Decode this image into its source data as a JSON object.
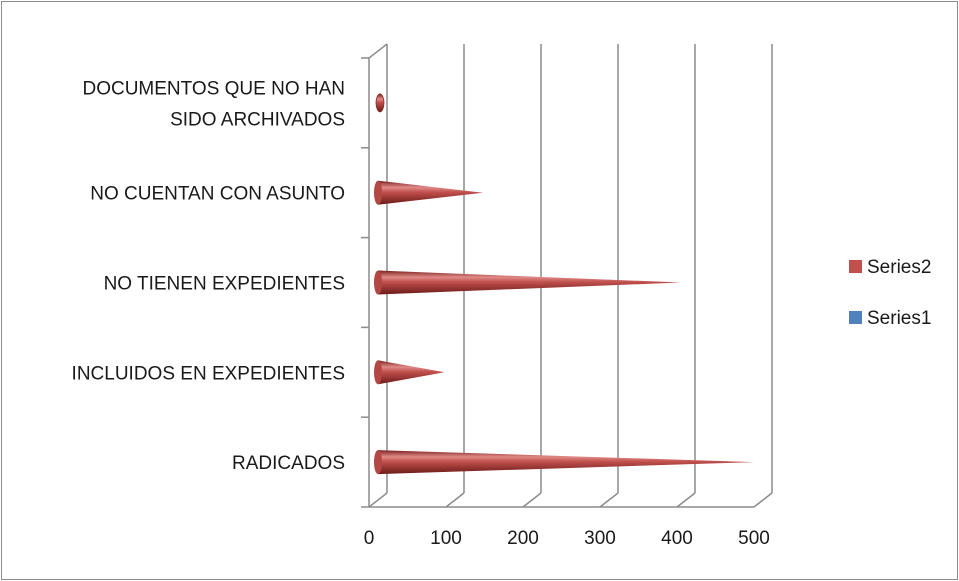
{
  "chart_data": {
    "type": "bar",
    "style": "3d-cone-horizontal",
    "categories": [
      "RADICADOS",
      "INCLUIDOS EN EXPEDIENTES",
      "NO TIENEN EXPEDIENTES",
      "NO CUENTAN CON ASUNTO",
      "DOCUMENTOS QUE NO HAN SIDO ARCHIVADOS"
    ],
    "category_lines": [
      [
        "RADICADOS"
      ],
      [
        "INCLUIDOS EN EXPEDIENTES"
      ],
      [
        "NO TIENEN EXPEDIENTES"
      ],
      [
        "NO CUENTAN CON ASUNTO"
      ],
      [
        "DOCUMENTOS QUE NO HAN",
        "SIDO ARCHIVADOS"
      ]
    ],
    "series": [
      {
        "name": "Series1",
        "values": [
          0,
          0,
          0,
          0,
          0
        ],
        "color": "#4f81bd"
      },
      {
        "name": "Series2",
        "values": [
          500,
          98,
          405,
          148,
          5
        ],
        "color": "#c0504d"
      }
    ],
    "xlim": [
      0,
      500
    ],
    "xticks": [
      "0",
      "100",
      "200",
      "300",
      "400",
      "500"
    ],
    "grid": true,
    "legend_position": "right",
    "title": "",
    "xlabel": "",
    "ylabel": ""
  }
}
